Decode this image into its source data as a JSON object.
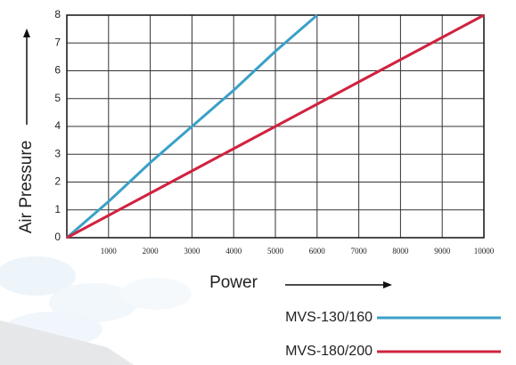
{
  "chart_data": {
    "type": "line",
    "x_label": "Power",
    "y_label": "Air Pressure",
    "x": [
      0,
      1000,
      2000,
      3000,
      4000,
      5000,
      6000,
      7000,
      8000,
      9000,
      10000
    ],
    "series": [
      {
        "name": "MVS-130/160",
        "color": "#3aa0c8",
        "values": [
          0,
          1.3,
          2.7,
          4,
          5.3,
          6.7,
          8,
          null,
          null,
          null,
          null
        ]
      },
      {
        "name": "MVS-180/200",
        "color": "#d0223f",
        "values": [
          0,
          0.8,
          1.6,
          2.4,
          3.2,
          4,
          4.8,
          5.6,
          6.4,
          7.2,
          8
        ]
      }
    ],
    "xlim": [
      0,
      10000
    ],
    "xticks": [
      1000,
      2000,
      3000,
      4000,
      5000,
      6000,
      7000,
      8000,
      9000,
      10000
    ],
    "ylim": [
      0,
      8
    ],
    "yticks": [
      0,
      1,
      2,
      3,
      4,
      5,
      6,
      7,
      8
    ],
    "grid": true
  }
}
